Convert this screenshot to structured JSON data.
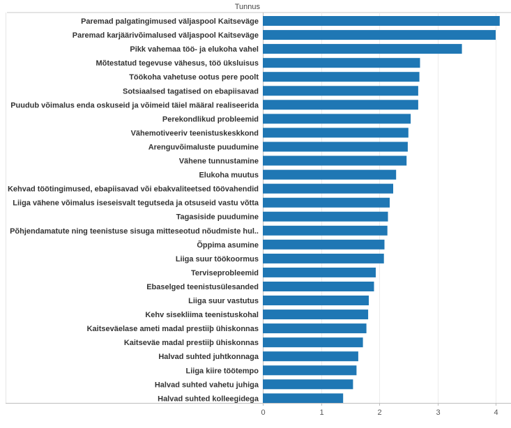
{
  "chart_data": {
    "type": "bar",
    "orientation": "horizontal",
    "column_header": "Tunnus",
    "categories": [
      "Paremad palgatingimused väljaspool Kaitseväge",
      "Paremad karjäärivõimalused väljaspool Kaitseväge",
      "Pikk vahemaa töö- ja elukoha vahel",
      "Mõtestatud tegevuse vähesus, töö üksluisus",
      "Töökoha vahetuse ootus pere poolt",
      "Sotsiaalsed tagatised on ebapiisavad",
      "Puudub võimalus enda oskuseid ja võimeid täiel määral realiseerida",
      "Perekondlikud probleemid",
      "Vähemotiveeriv teenistuskeskkond",
      "Arenguvõimaluste puudumine",
      "Vähene tunnustamine",
      "Elukoha muutus",
      "Kehvad töötingimused, ebapiisavad või ebakvaliteetsed töövahendid",
      "Liiga vähene võimalus iseseisvalt tegutseda ja otsuseid vastu võtta",
      "Tagasiside puudumine",
      "Põhjendamatute ning teenistuse sisuga mitteseotud nõudmiste hul..",
      "Õppima asumine",
      "Liiga suur töökoormus",
      "Terviseprobleemid",
      "Ebaselged teenistusülesanded",
      "Liiga suur vastutus",
      "Kehv sisekliima teenistuskohal",
      "Kaitseväelase ameti madal prestiiþ ühiskonnas",
      "Kaitseväe madal prestiiþ ühiskonnas",
      "Halvad suhted juhtkonnaga",
      "Liiga kiire töötempo",
      "Halvad suhted vahetu juhiga",
      "Halvad suhted kolleegidega"
    ],
    "values": [
      4.07,
      4.0,
      3.42,
      2.7,
      2.69,
      2.67,
      2.67,
      2.54,
      2.5,
      2.49,
      2.47,
      2.29,
      2.24,
      2.18,
      2.15,
      2.14,
      2.09,
      2.08,
      1.94,
      1.91,
      1.82,
      1.81,
      1.78,
      1.72,
      1.64,
      1.61,
      1.55,
      1.38
    ],
    "xlim": [
      0,
      4.3
    ],
    "xticks": [
      "0",
      "1",
      "2",
      "3",
      "4"
    ],
    "xtick_values": [
      0,
      1,
      2,
      3,
      4
    ],
    "bar_color": "#1f77b4",
    "gridlines": true
  }
}
